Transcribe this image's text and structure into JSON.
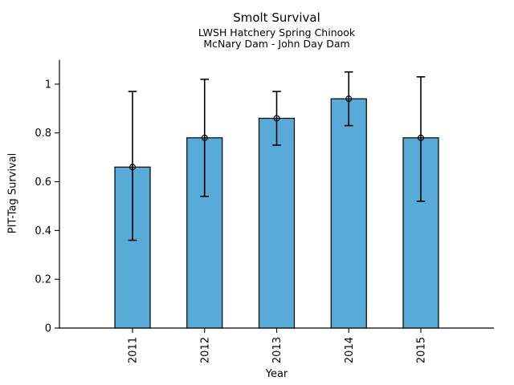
{
  "chart_data": {
    "type": "bar",
    "title": "Smolt Survival",
    "subtitle": [
      "LWSH Hatchery Spring Chinook",
      "McNary Dam - John Day Dam"
    ],
    "xlabel": "Year",
    "ylabel": "PIT-Tag Survival",
    "categories": [
      "2011",
      "2012",
      "2013",
      "2014",
      "2015"
    ],
    "values": [
      0.66,
      0.78,
      0.86,
      0.94,
      0.78
    ],
    "error_low": [
      0.36,
      0.54,
      0.75,
      0.83,
      0.52
    ],
    "error_high": [
      0.97,
      1.02,
      0.97,
      1.05,
      1.03
    ],
    "ylim": [
      0,
      1.1
    ],
    "yticks": [
      0,
      0.2,
      0.4,
      0.6,
      0.8,
      1
    ],
    "ytick_labels": [
      "0",
      "0.2",
      "0.4",
      "0.6",
      "0.8",
      "1"
    ],
    "xtick_rotation": 90,
    "grid": false,
    "legend": null,
    "marker": "open-circle",
    "bar_color": "#57abd6",
    "bar_edge_color": "#000000",
    "error_color": "#000000",
    "background_color": "#ffffff"
  }
}
